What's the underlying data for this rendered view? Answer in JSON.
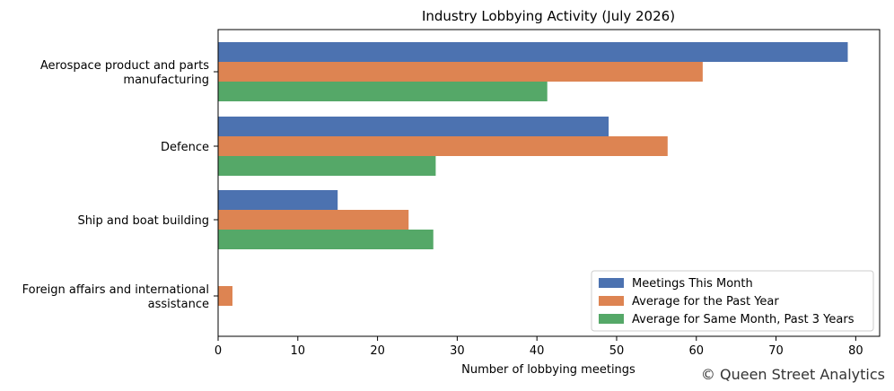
{
  "chart_data": {
    "type": "bar",
    "orientation": "horizontal",
    "title": "Industry Lobbying Activity (July 2026)",
    "xlabel": "Number of lobbying meetings",
    "ylabel": "",
    "xlim": [
      0,
      83
    ],
    "xticks": [
      0,
      10,
      20,
      30,
      40,
      50,
      60,
      70,
      80
    ],
    "categories": [
      [
        "Aerospace product and parts",
        "manufacturing"
      ],
      [
        "Defence"
      ],
      [
        "Ship and boat building"
      ],
      [
        "Foreign affairs and international",
        "assistance"
      ]
    ],
    "series": [
      {
        "name": "Meetings This Month",
        "color": "#4c72b0",
        "values": [
          79,
          49,
          15,
          0
        ]
      },
      {
        "name": "Average for the Past Year",
        "color": "#dd8452",
        "values": [
          60.8,
          56.4,
          23.9,
          1.8
        ]
      },
      {
        "name": "Average for Same Month, Past 3 Years",
        "color": "#55a868",
        "values": [
          41.3,
          27.3,
          27.0,
          0
        ]
      }
    ],
    "legend_position": "lower-right",
    "grid": false
  },
  "credit": "© Queen Street Analytics"
}
